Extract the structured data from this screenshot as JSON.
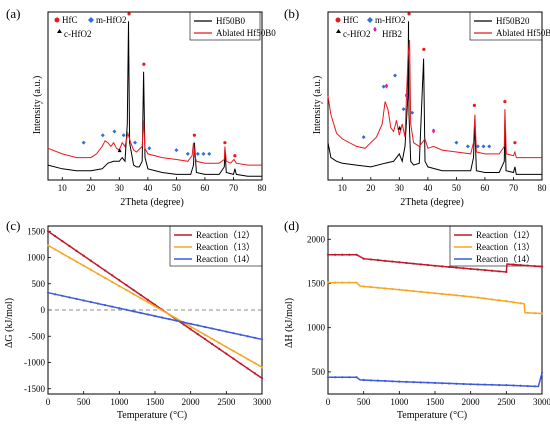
{
  "chart_data": [
    {
      "type": "line",
      "panel": "(a)",
      "xlabel": "2Theta (degree)",
      "ylabel": "Intensity (a.u.)",
      "xlim": [
        5,
        80
      ],
      "xticks": [
        "10",
        "20",
        "30",
        "40",
        "50",
        "60",
        "70",
        "80"
      ],
      "legend": [
        "Hf50B0",
        "Ablated Hf50B0"
      ],
      "phase_labels": [
        "HfC",
        "m-HfO2",
        "c-HfO2"
      ],
      "series": [
        {
          "name": "Hf50B0",
          "color": "#000000",
          "x": [
            5,
            10,
            15,
            20,
            24,
            26,
            28,
            30,
            31,
            32,
            32.8,
            33.2,
            33.6,
            35,
            36,
            37,
            38,
            38.5,
            39,
            40,
            45,
            50,
            55,
            56,
            56.3,
            57,
            60,
            65,
            66.8,
            67,
            67.5,
            70,
            70.5,
            71,
            75,
            80
          ],
          "y": [
            0.18,
            0.16,
            0.15,
            0.15,
            0.16,
            0.19,
            0.2,
            0.2,
            0.22,
            0.2,
            0.4,
            0.95,
            0.3,
            0.18,
            0.17,
            0.17,
            0.2,
            0.68,
            0.22,
            0.16,
            0.14,
            0.13,
            0.13,
            0.18,
            0.3,
            0.14,
            0.13,
            0.13,
            0.17,
            0.26,
            0.14,
            0.13,
            0.16,
            0.13,
            0.12,
            0.12
          ]
        },
        {
          "name": "Ablated Hf50B0",
          "color": "#e8191f",
          "x": [
            5,
            10,
            15,
            20,
            22,
            24,
            25,
            26,
            27,
            28,
            29,
            30,
            31,
            32,
            33,
            34,
            35,
            36,
            38,
            38.5,
            39,
            40,
            45,
            50,
            54,
            55.5,
            56,
            56.5,
            57,
            60,
            65,
            66.8,
            67,
            67.5,
            69,
            70.2,
            71,
            75,
            80
          ],
          "y": [
            0.27,
            0.24,
            0.22,
            0.22,
            0.24,
            0.28,
            0.31,
            0.3,
            0.28,
            0.3,
            0.27,
            0.26,
            0.3,
            0.28,
            0.35,
            0.3,
            0.26,
            0.25,
            0.28,
            0.42,
            0.27,
            0.24,
            0.22,
            0.21,
            0.2,
            0.23,
            0.3,
            0.23,
            0.2,
            0.19,
            0.19,
            0.21,
            0.28,
            0.2,
            0.19,
            0.21,
            0.19,
            0.18,
            0.18
          ]
        }
      ]
    },
    {
      "type": "line",
      "panel": "(b)",
      "xlabel": "2Theta (degree)",
      "ylabel": "Intensity (a.u.)",
      "xlim": [
        5,
        80
      ],
      "xticks": [
        "10",
        "20",
        "30",
        "40",
        "50",
        "60",
        "70",
        "80"
      ],
      "legend": [
        "Hf50B20",
        "Ablated Hf50B20"
      ],
      "phase_labels": [
        "HfC",
        "m-HfO2",
        "c-HfO2",
        "HfB2"
      ],
      "series": [
        {
          "name": "Hf50B20",
          "color": "#000000",
          "x": [
            5,
            6,
            8,
            10,
            15,
            20,
            25,
            28,
            30,
            31,
            32,
            33,
            33.2,
            33.4,
            34,
            35,
            37,
            38.5,
            39,
            40,
            45,
            50,
            55,
            56,
            56.4,
            57,
            60,
            65,
            66.8,
            67,
            67.4,
            70,
            70.5,
            71,
            75,
            80
          ],
          "y": [
            0.3,
            0.22,
            0.2,
            0.19,
            0.18,
            0.17,
            0.19,
            0.2,
            0.24,
            0.2,
            0.28,
            0.55,
            0.95,
            0.45,
            0.2,
            0.18,
            0.19,
            0.75,
            0.2,
            0.17,
            0.15,
            0.15,
            0.15,
            0.22,
            0.4,
            0.15,
            0.14,
            0.14,
            0.2,
            0.42,
            0.15,
            0.14,
            0.17,
            0.13,
            0.13,
            0.13
          ]
        },
        {
          "name": "Ablated Hf50B20",
          "color": "#e8191f",
          "x": [
            5,
            6,
            8,
            10,
            15,
            18,
            20,
            22,
            24,
            25,
            26,
            27,
            28,
            29,
            30,
            31,
            32,
            33,
            33.6,
            34,
            35,
            37,
            39,
            40,
            42,
            45,
            50,
            55,
            56,
            56.5,
            57,
            60,
            65,
            66.8,
            67,
            67.5,
            70,
            70.5,
            71,
            75,
            80
          ],
          "y": [
            0.55,
            0.45,
            0.35,
            0.32,
            0.28,
            0.27,
            0.3,
            0.33,
            0.4,
            0.52,
            0.48,
            0.38,
            0.36,
            0.42,
            0.34,
            0.4,
            0.33,
            0.75,
            0.85,
            0.4,
            0.3,
            0.28,
            0.32,
            0.27,
            0.28,
            0.26,
            0.25,
            0.24,
            0.3,
            0.45,
            0.25,
            0.24,
            0.24,
            0.28,
            0.48,
            0.24,
            0.23,
            0.25,
            0.22,
            0.22,
            0.22
          ]
        }
      ]
    },
    {
      "type": "line",
      "panel": "(c)",
      "xlabel": "Temperature (°C)",
      "ylabel": "ΔG (kJ/mol)",
      "xlim": [
        0,
        3000
      ],
      "ylim": [
        -1600,
        1600
      ],
      "xticks": [
        "0",
        "500",
        "1000",
        "1500",
        "2000",
        "2500",
        "3000"
      ],
      "yticks": [
        "-1500",
        "-1000",
        "-500",
        "0",
        "500",
        "1000",
        "1500"
      ],
      "grid": false,
      "series": [
        {
          "name": "Reaction（12）",
          "color": "#c0182b",
          "x": [
            0,
            3000
          ],
          "y": [
            1500,
            -1300
          ]
        },
        {
          "name": "Reaction（13）",
          "color": "#f5a623",
          "x": [
            0,
            3000
          ],
          "y": [
            1230,
            -1090
          ]
        },
        {
          "name": "Reaction（14）",
          "color": "#3d5bd9",
          "x": [
            0,
            3000
          ],
          "y": [
            330,
            -560
          ]
        }
      ]
    },
    {
      "type": "line",
      "panel": "(d)",
      "xlabel": "Temperature (°C)",
      "ylabel": "ΔH (kJ/mol)",
      "xlim": [
        0,
        3000
      ],
      "ylim": [
        250,
        2150
      ],
      "xticks": [
        "0",
        "500",
        "1000",
        "1500",
        "2000",
        "2500",
        "3000"
      ],
      "yticks": [
        "500",
        "1000",
        "1500",
        "2000"
      ],
      "grid": false,
      "series": [
        {
          "name": "Reaction（12）",
          "color": "#c0182b",
          "x": [
            0,
            400,
            500,
            1000,
            1500,
            2000,
            2500,
            2510,
            3000
          ],
          "y": [
            1825,
            1825,
            1780,
            1740,
            1700,
            1665,
            1630,
            1720,
            1690
          ]
        },
        {
          "name": "Reaction（13）",
          "color": "#f5a623",
          "x": [
            0,
            400,
            450,
            1000,
            1500,
            2000,
            2500,
            2750,
            2760,
            3000
          ],
          "y": [
            1510,
            1510,
            1470,
            1430,
            1390,
            1350,
            1300,
            1270,
            1170,
            1160
          ]
        },
        {
          "name": "Reaction（14）",
          "color": "#3d5bd9",
          "x": [
            0,
            400,
            450,
            1000,
            1500,
            2000,
            2500,
            2950,
            3000
          ],
          "y": [
            440,
            440,
            410,
            390,
            375,
            360,
            350,
            335,
            490
          ]
        }
      ]
    }
  ]
}
